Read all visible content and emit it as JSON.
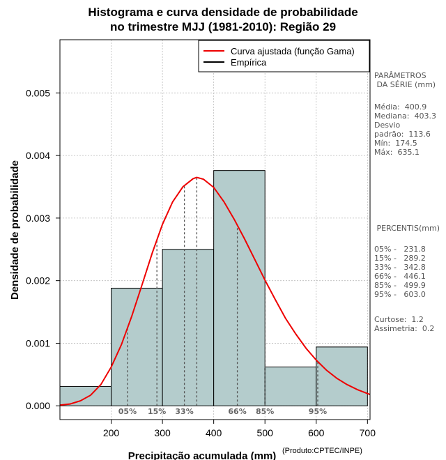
{
  "chart_data": {
    "type": "bar",
    "title": [
      "Histograma e curva densidade de probabilidade",
      "no trimestre MJJ (1981-2010): Região 29"
    ],
    "xlabel": "Precipitação acumulada (mm)",
    "ylabel": "Densidade de probabilidade",
    "credit": "(Produto:CPTEC/INPE)",
    "xlim": [
      100,
      705
    ],
    "ylim": [
      -0.00022,
      0.00585
    ],
    "xticks": [
      200,
      300,
      400,
      500,
      600,
      700
    ],
    "yticks": [
      0.0,
      0.001,
      0.002,
      0.003,
      0.004,
      0.005
    ],
    "ytick_labels": [
      "0.000",
      "0.001",
      "0.002",
      "0.003",
      "0.004",
      "0.005"
    ],
    "histogram": {
      "bins": [
        [
          100,
          200
        ],
        [
          200,
          300
        ],
        [
          300,
          400
        ],
        [
          400,
          500
        ],
        [
          500,
          600
        ],
        [
          600,
          700
        ]
      ],
      "density": [
        0.00031,
        0.00188,
        0.0025,
        0.00376,
        0.00062,
        0.00094
      ],
      "fill": "#b4cccc"
    },
    "curve": {
      "name": "Curva ajustada (função Gama)",
      "color": "#ee0000",
      "mode_x": 367,
      "mode_y": 0.00365,
      "x": [
        100,
        120,
        140,
        160,
        180,
        200,
        220,
        240,
        260,
        280,
        300,
        320,
        340,
        360,
        367,
        380,
        400,
        420,
        440,
        460,
        480,
        500,
        520,
        540,
        560,
        580,
        600,
        620,
        640,
        660,
        680,
        705
      ],
      "y": [
        1e-05,
        3e-05,
        8e-05,
        0.00017,
        0.00034,
        0.00062,
        0.00098,
        0.00143,
        0.00193,
        0.00244,
        0.0029,
        0.00326,
        0.0035,
        0.00363,
        0.00365,
        0.00362,
        0.00349,
        0.00326,
        0.00298,
        0.00267,
        0.00234,
        0.00201,
        0.0017,
        0.0014,
        0.00115,
        0.00092,
        0.00073,
        0.00057,
        0.00044,
        0.00034,
        0.00026,
        0.00018
      ]
    },
    "empirical_label": "Empírica",
    "percentiles": [
      {
        "label": "05%",
        "x": 231.8
      },
      {
        "label": "15%",
        "x": 289.2
      },
      {
        "label": "33%",
        "x": 342.8
      },
      {
        "label": "66%",
        "x": 446.1
      },
      {
        "label": "85%",
        "x": 499.9
      },
      {
        "label": "95%",
        "x": 603.0
      }
    ]
  },
  "stats": {
    "params_title": "PARÂMETROS\n DA SÉRIE (mm)",
    "params_lines": "Média:  400.9\nMediana:  403.3\nDesvio\npadrão:  113.6\nMín:  174.5\nMáx:  635.1",
    "percentis_title": " PERCENTIS(mm)",
    "percentis_lines": "05% -   231.8\n15% -   289.2\n33% -   342.8\n66% -   446.1\n85% -   499.9\n95% -   603.0",
    "extra_lines": "Curtose:  1.2\nAssimetria:  0.2"
  }
}
